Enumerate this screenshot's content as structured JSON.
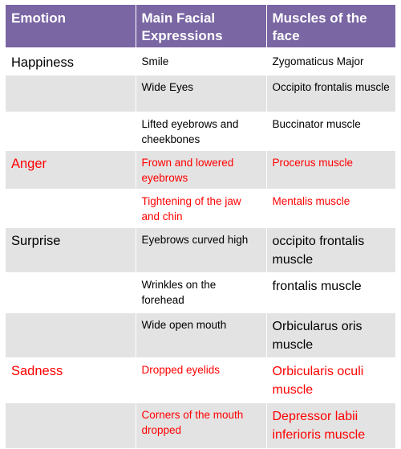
{
  "header": {
    "col1": "Emotion",
    "col2": "Main Facial Expressions",
    "col3": "Muscles of the face"
  },
  "rows": [
    {
      "emotion": "Happiness",
      "expression": "Smile",
      "muscle": "Zygomaticus Major"
    },
    {
      "emotion": "",
      "expression": "Wide Eyes",
      "muscle": "Occipito frontalis muscle"
    },
    {
      "emotion": "",
      "expression": "Lifted eyebrows and cheekbones",
      "muscle": "Buccinator muscle"
    },
    {
      "emotion": "Anger",
      "expression": "Frown and lowered eyebrows",
      "muscle": "Procerus muscle"
    },
    {
      "emotion": "",
      "expression": "Tightening of the jaw and chin",
      "muscle": "Mentalis muscle"
    },
    {
      "emotion": "Surprise",
      "expression": "Eyebrows curved high",
      "muscle": "occipito frontalis muscle"
    },
    {
      "emotion": "",
      "expression": "Wrinkles on the forehead",
      "muscle": "frontalis muscle"
    },
    {
      "emotion": "",
      "expression": "Wide open mouth",
      "muscle": "Orbicularus oris muscle"
    },
    {
      "emotion": "Sadness",
      "expression": "Dropped eyelids",
      "muscle": "Orbicularis oculi muscle"
    },
    {
      "emotion": "",
      "expression": "Corners of the mouth dropped",
      "muscle": "Depressor labii inferioris muscle"
    }
  ],
  "colors": {
    "header_bg": "#7966a3",
    "band_gray": "#e3e3e3",
    "highlight_red": "#ff0000"
  }
}
